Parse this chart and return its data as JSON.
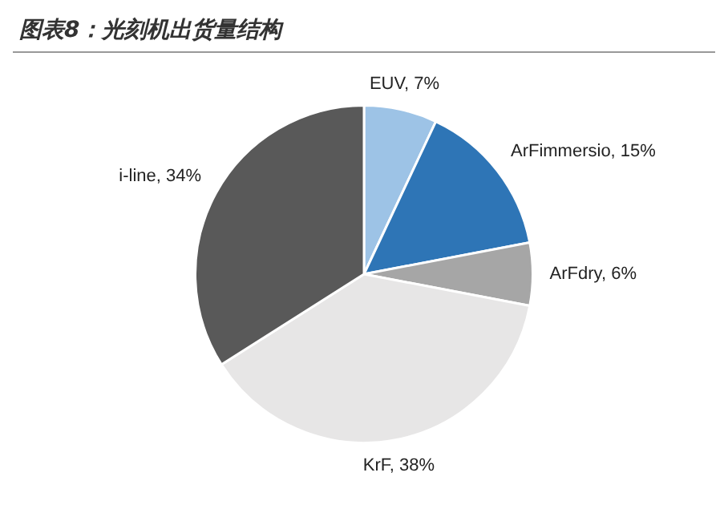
{
  "chart_data": {
    "type": "pie",
    "title": "图表8：光刻机出货量结构",
    "categories": [
      "EUV",
      "ArFimmersio",
      "ArFdry",
      "KrF",
      "i-line"
    ],
    "values": [
      7,
      15,
      6,
      38,
      34
    ],
    "value_labels": [
      "7%",
      "15%",
      "6%",
      "38%",
      "34%"
    ],
    "colors": [
      "#9dc3e6",
      "#2e75b6",
      "#a6a6a6",
      "#e7e6e6",
      "#595959"
    ],
    "legend": false
  }
}
